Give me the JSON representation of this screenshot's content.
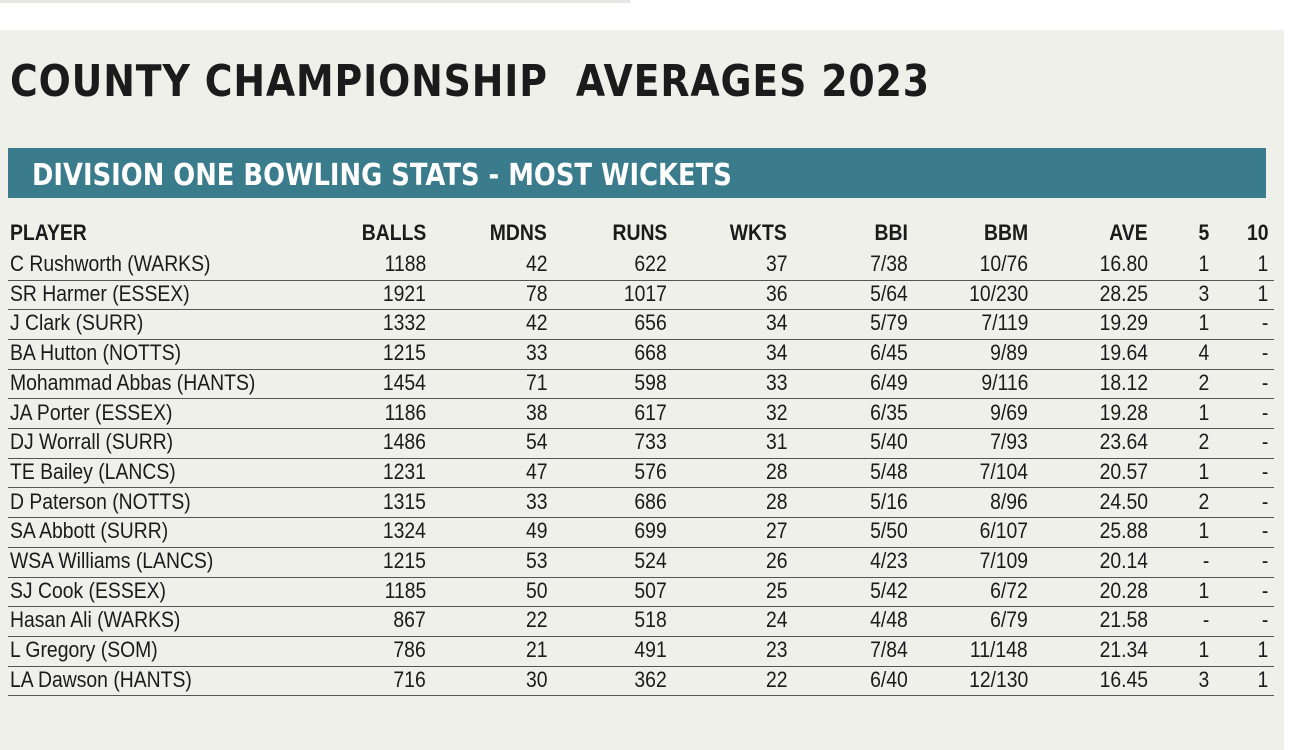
{
  "header": {
    "title": "COUNTY CHAMPIONSHIP  AVERAGES 2023",
    "subtitle": "DIVISION ONE BOWLING STATS - MOST WICKETS"
  },
  "table": {
    "columns": [
      "PLAYER",
      "BALLS",
      "MDNS",
      "RUNS",
      "WKTS",
      "BBI",
      "BBM",
      "AVE",
      "5",
      "10"
    ],
    "rows": [
      [
        "C Rushworth (WARKS)",
        "1188",
        "42",
        "622",
        "37",
        "7/38",
        "10/76",
        "16.80",
        "1",
        "1"
      ],
      [
        "SR Harmer (ESSEX)",
        "1921",
        "78",
        "1017",
        "36",
        "5/64",
        "10/230",
        "28.25",
        "3",
        "1"
      ],
      [
        "J Clark (SURR)",
        "1332",
        "42",
        "656",
        "34",
        "5/79",
        "7/119",
        "19.29",
        "1",
        "-"
      ],
      [
        "BA Hutton (NOTTS)",
        "1215",
        "33",
        "668",
        "34",
        "6/45",
        "9/89",
        "19.64",
        "4",
        "-"
      ],
      [
        "Mohammad Abbas (HANTS)",
        "1454",
        "71",
        "598",
        "33",
        "6/49",
        "9/116",
        "18.12",
        "2",
        "-"
      ],
      [
        "JA Porter (ESSEX)",
        "1186",
        "38",
        "617",
        "32",
        "6/35",
        "9/69",
        "19.28",
        "1",
        "-"
      ],
      [
        "DJ Worrall (SURR)",
        "1486",
        "54",
        "733",
        "31",
        "5/40",
        "7/93",
        "23.64",
        "2",
        "-"
      ],
      [
        "TE Bailey (LANCS)",
        "1231",
        "47",
        "576",
        "28",
        "5/48",
        "7/104",
        "20.57",
        "1",
        "-"
      ],
      [
        "D Paterson (NOTTS)",
        "1315",
        "33",
        "686",
        "28",
        "5/16",
        "8/96",
        "24.50",
        "2",
        "-"
      ],
      [
        "SA Abbott (SURR)",
        "1324",
        "49",
        "699",
        "27",
        "5/50",
        "6/107",
        "25.88",
        "1",
        "-"
      ],
      [
        "WSA Williams (LANCS)",
        "1215",
        "53",
        "524",
        "26",
        "4/23",
        "7/109",
        "20.14",
        "-",
        "-"
      ],
      [
        "SJ Cook (ESSEX)",
        "1185",
        "50",
        "507",
        "25",
        "5/42",
        "6/72",
        "20.28",
        "1",
        "-"
      ],
      [
        "Hasan Ali (WARKS)",
        "867",
        "22",
        "518",
        "24",
        "4/48",
        "6/79",
        "21.58",
        "-",
        "-"
      ],
      [
        "L Gregory (SOM)",
        "786",
        "21",
        "491",
        "23",
        "7/84",
        "11/148",
        "21.34",
        "1",
        "1"
      ],
      [
        "LA Dawson (HANTS)",
        "716",
        "30",
        "362",
        "22",
        "6/40",
        "12/130",
        "16.45",
        "3",
        "1"
      ]
    ]
  }
}
